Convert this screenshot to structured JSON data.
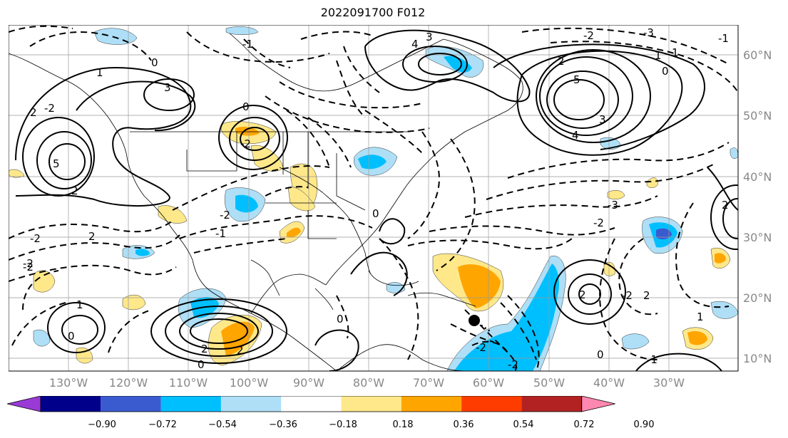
{
  "title": "2022091700 F012",
  "lon_labels": [
    "130°W",
    "120°W",
    "110°W",
    "100°W",
    "90°W",
    "80°W",
    "70°W",
    "60°W",
    "50°W",
    "40°W",
    "30°W"
  ],
  "lat_labels": [
    "60°N",
    "50°N",
    "40°N",
    "30°N",
    "20°N",
    "10°N"
  ],
  "colorbar": {
    "ticks": [
      "−0.90",
      "−0.72",
      "−0.54",
      "−0.36",
      "−0.18",
      "0.18",
      "0.36",
      "0.54",
      "0.72",
      "0.90"
    ],
    "colors": [
      "#9a3ad6",
      "#00008b",
      "#3a5bd0",
      "#00bfff",
      "#aedff7",
      "#ffffff",
      "#ffe88a",
      "#ffa500",
      "#ff3c00",
      "#b22222",
      "#ff88b0"
    ]
  },
  "contour_labels": {
    "c1": "1",
    "c2": "0",
    "c3": "-2",
    "c4": "2",
    "c5": "5",
    "c6": "3",
    "c7": "0",
    "c8": "-2",
    "c9": "2",
    "c10": "-2",
    "c11": "-2",
    "c12": "2",
    "c13": "1",
    "c14": "0",
    "c15": "2",
    "c16": "0",
    "c17": "-2",
    "c18": "-1",
    "c19": "0",
    "c20": "3",
    "c21": "4",
    "c22": "5",
    "c23": "4",
    "c24": "3",
    "c25": "2",
    "c26": "1",
    "c27": "0",
    "c28": "-3",
    "c29": "-2",
    "c30": "-3",
    "c31": "-2",
    "c32": "2",
    "c33": "-2",
    "c34": "2",
    "c35": "1",
    "c36": "2",
    "c37": "0",
    "c38": "-1",
    "c39": "-2",
    "c40": "-2",
    "c41": "0",
    "c42": "-1",
    "c43": "-1",
    "c44": "1",
    "c45": "2",
    "c46": "-2"
  }
}
